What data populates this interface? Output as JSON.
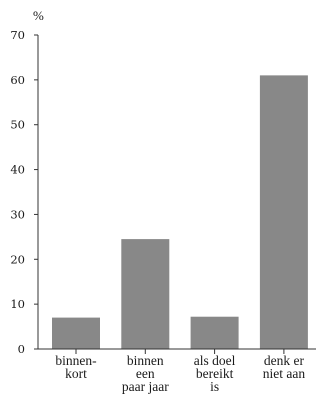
{
  "chart_data": {
    "type": "bar",
    "ylabel": "%",
    "categories": [
      [
        "binnen-",
        "kort"
      ],
      [
        "binnen",
        "een",
        "paar jaar"
      ],
      [
        "als doel",
        "bereikt",
        "is"
      ],
      [
        "denk er",
        "niet aan"
      ]
    ],
    "values": [
      7,
      24.5,
      7.2,
      61
    ],
    "ylim": [
      0,
      70
    ],
    "yticks": [
      0,
      10,
      20,
      30,
      40,
      50,
      60,
      70
    ],
    "grid": false,
    "legend": "none",
    "bar_color": "#888888",
    "axis_color": "#333333"
  }
}
